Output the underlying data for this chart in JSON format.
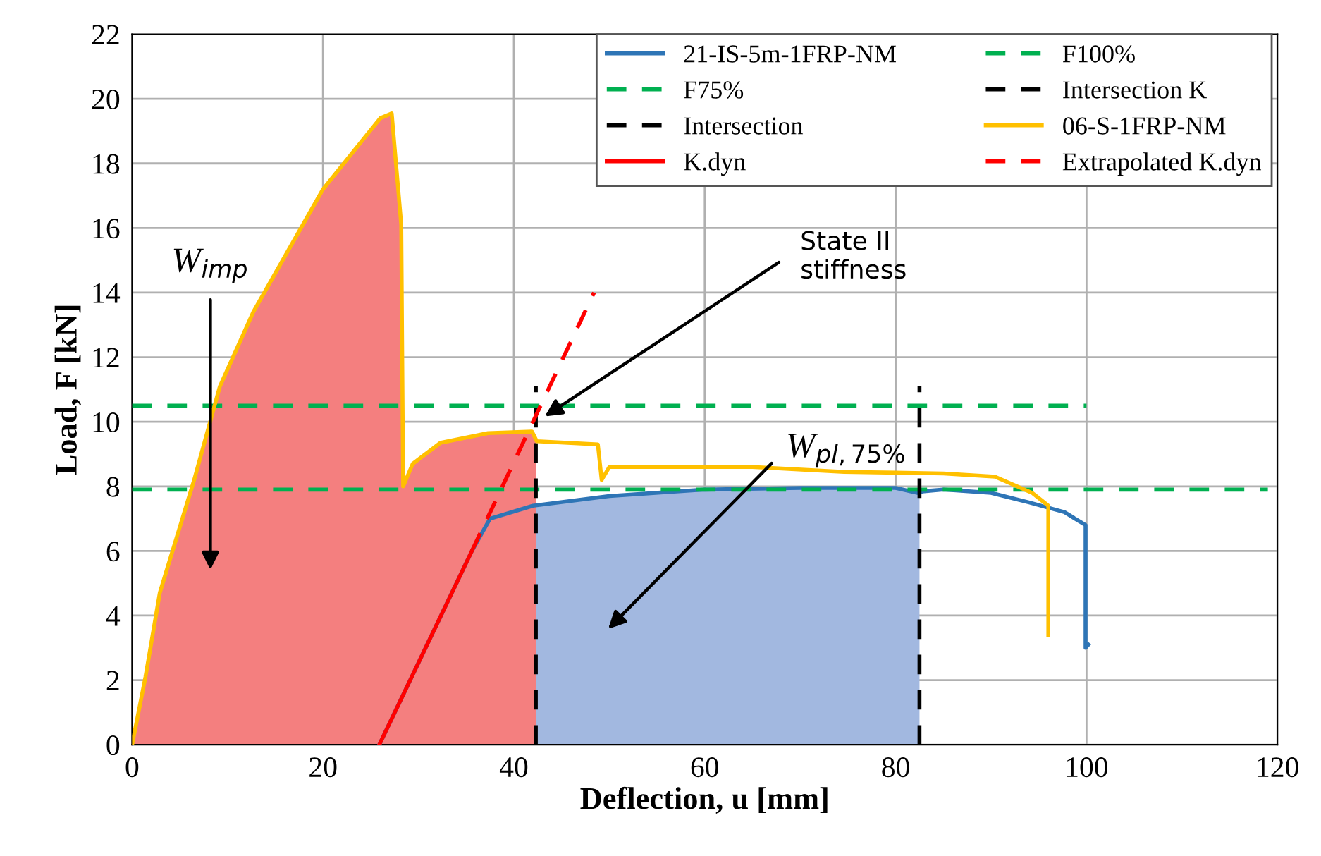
{
  "chart_data": {
    "type": "line",
    "xlabel": "Deflection, u [mm]",
    "ylabel": "Load, F [kN]",
    "xlim": [
      0,
      120
    ],
    "xticks": [
      0,
      20,
      40,
      60,
      80,
      100,
      120
    ],
    "ylim": [
      0,
      22
    ],
    "yticks": [
      0,
      2,
      4,
      6,
      8,
      10,
      12,
      14,
      16,
      18,
      20,
      22
    ],
    "grid": true,
    "legend": "top right",
    "annotations": [
      "W$_{imp}$",
      "State II\nstiffness",
      "W$_{pl,75%}$"
    ],
    "series": [
      {
        "type": "area",
        "color": "#f47f7f",
        "x": [
          0,
          1.4,
          2.9,
          6.5,
          9.2,
          12.7,
          20,
          26,
          27.2,
          28.2,
          28.4,
          29.4,
          32.3,
          37.3,
          41.9,
          42.3,
          42.3
        ],
        "values": [
          0,
          2.1,
          4.7,
          8.2,
          11.1,
          13.4,
          17.2,
          19.4,
          19.55,
          16.1,
          8.0,
          8.7,
          9.35,
          9.65,
          9.7,
          9.6,
          0
        ]
      },
      {
        "type": "area",
        "color": "#a2b8e0",
        "x": [
          42.3,
          42.3,
          50,
          60,
          70,
          80,
          82.5,
          82.5
        ],
        "values": [
          0,
          7.4,
          7.7,
          7.9,
          7.95,
          7.95,
          7.8,
          0
        ]
      },
      {
        "name": "21-IS-5m-1FRP-NM",
        "color": "#2e75b6",
        "x": [
          25.9,
          35.6,
          37.5,
          42,
          50,
          60,
          70,
          80,
          82.3,
          83,
          85,
          90,
          94,
          97.7,
          99.9,
          99.9,
          100.2
        ],
        "values": [
          0,
          6.0,
          7.0,
          7.4,
          7.7,
          7.9,
          7.95,
          7.95,
          7.8,
          7.85,
          7.9,
          7.8,
          7.5,
          7.2,
          6.8,
          3.0,
          3.1
        ]
      },
      {
        "name": "F100%",
        "color": "#00b050",
        "line_style": "dashed",
        "x": [
          0,
          100
        ],
        "values": [
          10.5,
          10.5
        ]
      },
      {
        "name": "F75%",
        "color": "#00b050",
        "line_style": "dashed",
        "x": [
          0,
          119
        ],
        "values": [
          7.9,
          7.9
        ]
      },
      {
        "name": "Intersection K",
        "color": "#000000",
        "line_style": "dashed",
        "x": [
          42.3,
          42.3
        ],
        "values": [
          0,
          11.1
        ]
      },
      {
        "name": "Intersection",
        "color": "#000000",
        "line_style": "dashed",
        "x": [
          82.5,
          82.5
        ],
        "values": [
          0,
          11.1
        ]
      },
      {
        "name": "06-S-1FRP-NM",
        "color": "#ffc000",
        "x": [
          0,
          1.4,
          2.9,
          6.5,
          9.2,
          12.7,
          20,
          26,
          27.2,
          28.2,
          28.4,
          29.4,
          32.3,
          37.3,
          41.9,
          42.4,
          48.8,
          49.2,
          50,
          65,
          74.6,
          85,
          90.4,
          94.3,
          96,
          96
        ],
        "values": [
          0,
          2.1,
          4.7,
          8.2,
          11.1,
          13.4,
          17.2,
          19.4,
          19.55,
          16.1,
          8.0,
          8.7,
          9.35,
          9.65,
          9.7,
          9.4,
          9.3,
          8.2,
          8.6,
          8.6,
          8.45,
          8.4,
          8.3,
          7.8,
          7.4,
          3.4
        ]
      },
      {
        "name": "K.dyn",
        "color": "#ff0000",
        "x": [
          25.9,
          35.6
        ],
        "values": [
          0,
          6.0
        ]
      },
      {
        "name": "Extrapolated K.dyn",
        "color": "#ff0000",
        "line_style": "dashed",
        "x": [
          35.6,
          48.4
        ],
        "values": [
          6.0,
          14.0
        ]
      }
    ]
  }
}
